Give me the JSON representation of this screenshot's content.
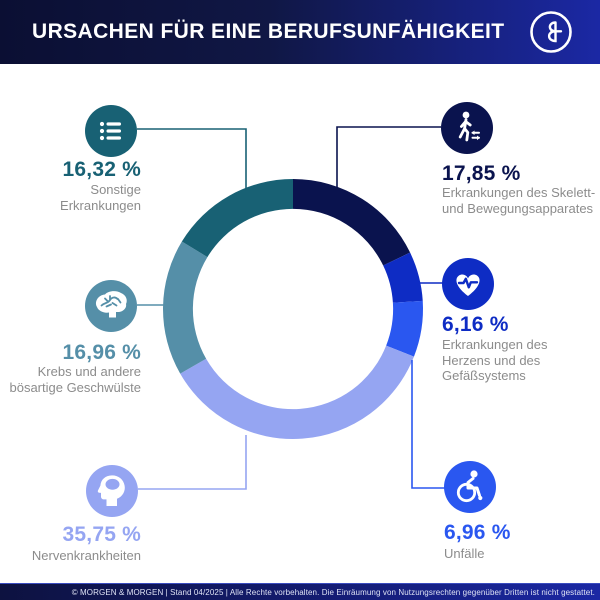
{
  "header": {
    "title": "URSACHEN FÜR EINE BERUFSUNFÄHIGKEIT",
    "logo": "morgen-und-morgen-ampersand-logo"
  },
  "footer": {
    "text": "© MORGEN & MORGEN | Stand 04/2025 | Alle Rechte vorbehalten. Die Einräumung von Nutzungsrechten gegenüber Dritten ist nicht gestattet."
  },
  "colors": {
    "header_gradient_left": "#0b0f33",
    "header_gradient_right": "#1b28a4",
    "description_text": "#8c8c8c",
    "background": "#ffffff"
  },
  "chart_data": {
    "type": "pie",
    "donut": true,
    "title": "Ursachen für eine Berufsunfähigkeit",
    "unit": "%",
    "total": 100,
    "start_angle_deg": 0,
    "direction": "clockwise",
    "inner_radius_ratio": 0.77,
    "legend_position": "callouts-around-donut",
    "segments": [
      {
        "id": "skelett",
        "value": 17.85,
        "value_label": "17,85 %",
        "label": "Erkrankungen des Skelett- und Bewegungsapparates",
        "lines": [
          "Erkrankungen des Skelett-",
          "und Bewegungsapparates"
        ],
        "color": "#0a134e",
        "icon": "walking-icon"
      },
      {
        "id": "herz",
        "value": 6.16,
        "value_label": "6,16 %",
        "label": "Erkrankungen des Herzens und des Gefäßsystems",
        "lines": [
          "Erkrankungen des",
          "Herzens und des",
          "Gefäßsystems"
        ],
        "color": "#0e2cc4",
        "icon": "heartbeat-icon"
      },
      {
        "id": "unfaelle",
        "value": 6.96,
        "value_label": "6,96 %",
        "label": "Unfälle",
        "lines": [
          "Unfälle"
        ],
        "color": "#2a57f0",
        "icon": "wheelchair-icon"
      },
      {
        "id": "nerven",
        "value": 35.75,
        "value_label": "35,75 %",
        "label": "Nervenkrankheiten",
        "lines": [
          "Nervenkrankheiten"
        ],
        "color": "#95a5f2",
        "icon": "head-profile-icon"
      },
      {
        "id": "krebs",
        "value": 16.96,
        "value_label": "16,96 %",
        "label": "Krebs und andere bösartige Geschwülste",
        "lines": [
          "Krebs und andere",
          "bösartige Geschwülste"
        ],
        "color": "#558fa8",
        "icon": "brain-icon"
      },
      {
        "id": "sonstige",
        "value": 16.32,
        "value_label": "16,32 %",
        "label": "Sonstige Erkrankungen",
        "lines": [
          "Sonstige",
          "Erkrankungen"
        ],
        "color": "#186174",
        "icon": "list-icon"
      }
    ]
  }
}
